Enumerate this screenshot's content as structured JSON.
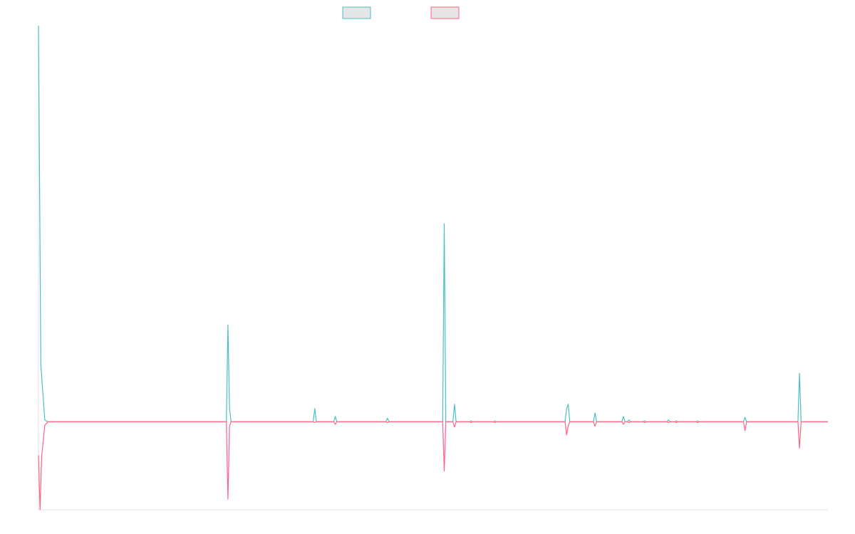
{
  "colors": {
    "series_a": "#4bc0c0",
    "series_b": "#ff6384",
    "legend_fill": "#e6e6e6",
    "axis": "#e3e3e3"
  },
  "chart_data": {
    "type": "line",
    "title": "",
    "xlabel": "",
    "ylabel": "",
    "xlim": [
      0,
      1000
    ],
    "ylim": [
      -100,
      450
    ],
    "grid": false,
    "legend": "top-center",
    "series": [
      {
        "name": "",
        "color": "#4bc0c0",
        "points": [
          [
            0,
            450
          ],
          [
            3,
            65
          ],
          [
            8,
            2
          ],
          [
            12,
            0
          ],
          [
            238,
            0
          ],
          [
            240,
            110
          ],
          [
            242,
            15
          ],
          [
            244,
            0
          ],
          [
            348,
            0
          ],
          [
            350,
            15
          ],
          [
            352,
            0
          ],
          [
            374,
            0
          ],
          [
            376,
            6
          ],
          [
            378,
            0
          ],
          [
            440,
            0
          ],
          [
            442,
            4
          ],
          [
            444,
            0
          ],
          [
            512,
            0
          ],
          [
            514,
            225
          ],
          [
            516,
            0
          ],
          [
            525,
            0
          ],
          [
            527,
            20
          ],
          [
            529,
            0
          ],
          [
            546,
            0
          ],
          [
            548,
            1
          ],
          [
            550,
            0
          ],
          [
            576,
            0
          ],
          [
            578,
            1
          ],
          [
            580,
            0
          ],
          [
            667,
            0
          ],
          [
            669,
            15
          ],
          [
            671,
            20
          ],
          [
            673,
            0
          ],
          [
            703,
            0
          ],
          [
            705,
            10
          ],
          [
            707,
            0
          ],
          [
            739,
            0
          ],
          [
            741,
            6
          ],
          [
            743,
            0
          ],
          [
            746,
            0
          ],
          [
            748,
            2
          ],
          [
            750,
            0
          ],
          [
            766,
            0
          ],
          [
            768,
            1
          ],
          [
            770,
            0
          ],
          [
            796,
            0
          ],
          [
            798,
            2
          ],
          [
            800,
            0
          ],
          [
            806,
            0
          ],
          [
            808,
            1
          ],
          [
            810,
            0
          ],
          [
            833,
            0
          ],
          [
            835,
            1
          ],
          [
            837,
            0
          ],
          [
            893,
            0
          ],
          [
            895,
            5
          ],
          [
            897,
            0
          ],
          [
            962,
            0
          ],
          [
            964,
            55
          ],
          [
            966,
            0
          ],
          [
            1000,
            0
          ]
        ]
      },
      {
        "name": "",
        "color": "#ff6384",
        "points": [
          [
            0,
            -38
          ],
          [
            2,
            -100
          ],
          [
            4,
            -40
          ],
          [
            8,
            -4
          ],
          [
            12,
            0
          ],
          [
            238,
            0
          ],
          [
            240,
            -88
          ],
          [
            242,
            -5
          ],
          [
            244,
            0
          ],
          [
            348,
            0
          ],
          [
            350,
            -1
          ],
          [
            352,
            0
          ],
          [
            374,
            0
          ],
          [
            376,
            -3
          ],
          [
            378,
            0
          ],
          [
            440,
            0
          ],
          [
            442,
            -1
          ],
          [
            444,
            0
          ],
          [
            512,
            0
          ],
          [
            514,
            -56
          ],
          [
            516,
            0
          ],
          [
            525,
            0
          ],
          [
            527,
            -6
          ],
          [
            529,
            0
          ],
          [
            546,
            0
          ],
          [
            548,
            -1
          ],
          [
            550,
            0
          ],
          [
            576,
            0
          ],
          [
            578,
            -1
          ],
          [
            580,
            0
          ],
          [
            667,
            0
          ],
          [
            669,
            -15
          ],
          [
            671,
            -5
          ],
          [
            673,
            0
          ],
          [
            703,
            0
          ],
          [
            705,
            -5
          ],
          [
            707,
            0
          ],
          [
            739,
            0
          ],
          [
            741,
            -3
          ],
          [
            743,
            0
          ],
          [
            746,
            0
          ],
          [
            748,
            -1
          ],
          [
            750,
            0
          ],
          [
            766,
            0
          ],
          [
            768,
            -1
          ],
          [
            770,
            0
          ],
          [
            796,
            0
          ],
          [
            798,
            -1
          ],
          [
            800,
            0
          ],
          [
            806,
            0
          ],
          [
            808,
            -1
          ],
          [
            810,
            0
          ],
          [
            833,
            0
          ],
          [
            835,
            -1
          ],
          [
            837,
            0
          ],
          [
            893,
            0
          ],
          [
            895,
            -10
          ],
          [
            897,
            0
          ],
          [
            962,
            0
          ],
          [
            964,
            -30
          ],
          [
            966,
            0
          ],
          [
            1000,
            0
          ]
        ]
      }
    ]
  }
}
